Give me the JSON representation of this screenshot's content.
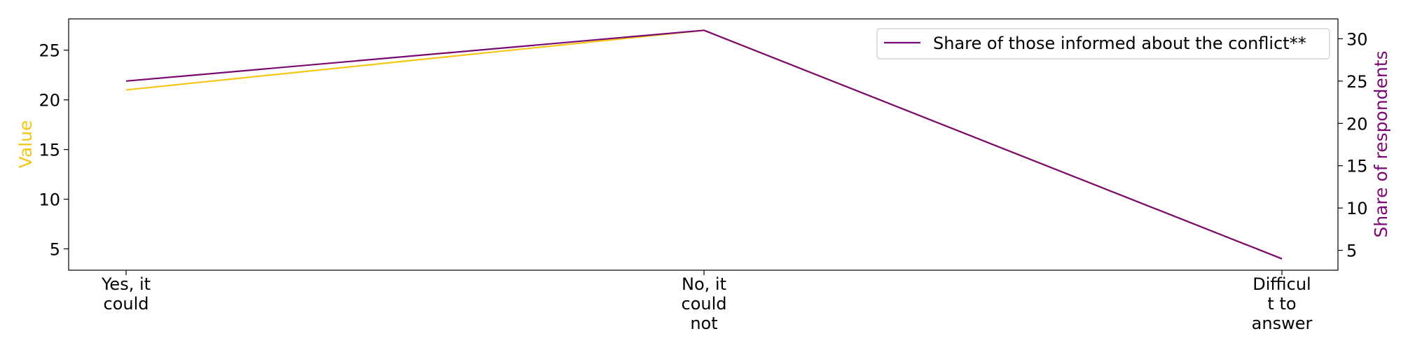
{
  "chart_data": {
    "type": "line",
    "categories": [
      "Yes, it could",
      "No, it could not",
      "Difficult to answer"
    ],
    "category_lines": [
      [
        "Yes, it",
        "could"
      ],
      [
        "No, it",
        "could",
        "not"
      ],
      [
        "Difficul",
        "t to",
        "answer"
      ]
    ],
    "series": [
      {
        "name": "",
        "axis": "left",
        "color": "#f5c518",
        "values": [
          21,
          27,
          4
        ]
      },
      {
        "name": "Share of those informed about the conflict**",
        "axis": "right",
        "color": "#7a0a73",
        "values": [
          25,
          31,
          4
        ]
      }
    ],
    "ylabel_left": "Value",
    "ylabel_right": "Share of respondents",
    "ylim_left": [
      2.85,
      28.15
    ],
    "ylim_right": [
      2.65,
      32.35
    ],
    "yticks_left": [
      5,
      10,
      15,
      20,
      25
    ],
    "yticks_right": [
      5,
      10,
      15,
      20,
      25,
      30
    ],
    "legend_position": "top-right",
    "grid": false,
    "colors": {
      "left_axis_label": "#f5c518",
      "right_axis_label": "#7a0a73"
    }
  }
}
